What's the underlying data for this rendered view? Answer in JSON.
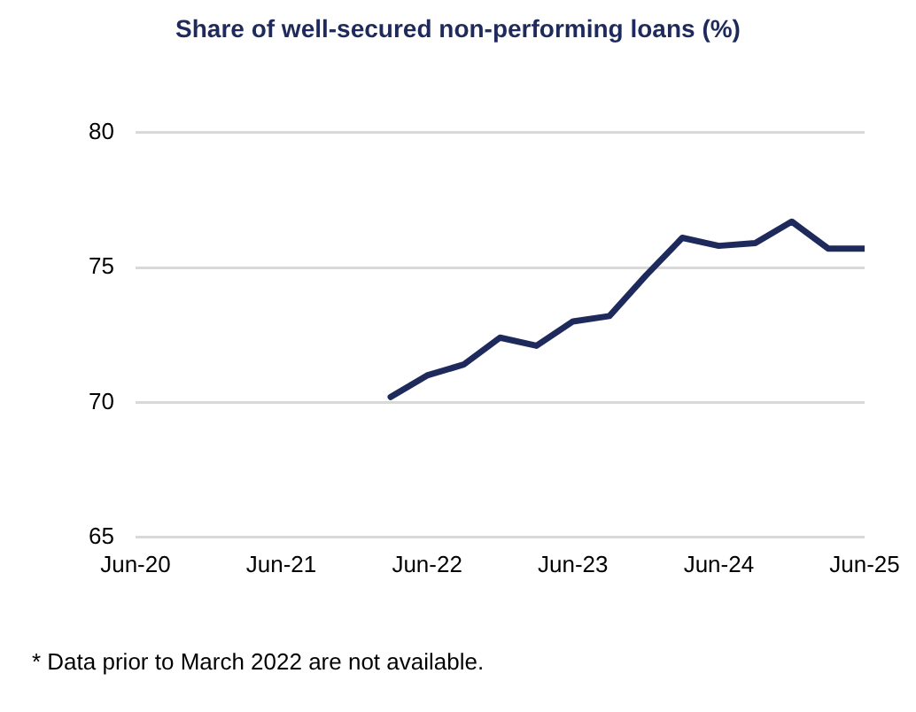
{
  "chart_data": {
    "type": "line",
    "title": "Share of well-secured non-performing loans (%)",
    "x": [
      "2022-03",
      "2022-06",
      "2022-09",
      "2022-12",
      "2023-03",
      "2023-06",
      "2023-09",
      "2023-12",
      "2024-03",
      "2024-06",
      "2024-09",
      "2024-12",
      "2025-03",
      "2025-06"
    ],
    "series": [
      {
        "color": "#1f2a5c",
        "values": [
          70.2,
          71.0,
          71.4,
          72.4,
          72.1,
          73.0,
          73.2,
          74.7,
          76.1,
          75.8,
          75.9,
          76.7,
          75.7,
          75.7
        ]
      }
    ],
    "xlim": [
      "2020-06",
      "2025-06"
    ],
    "xticks": [
      {
        "value": "2020-06",
        "label": "Jun-20"
      },
      {
        "value": "2021-06",
        "label": "Jun-21"
      },
      {
        "value": "2022-06",
        "label": "Jun-22"
      },
      {
        "value": "2023-06",
        "label": "Jun-23"
      },
      {
        "value": "2024-06",
        "label": "Jun-24"
      },
      {
        "value": "2025-06",
        "label": "Jun-25"
      }
    ],
    "ylim": [
      65,
      80
    ],
    "yticks": [
      65,
      70,
      75,
      80
    ],
    "grid": "y",
    "legend": false,
    "marker": "none",
    "line_style": "solid",
    "annotations": [
      "* Data prior to March 2022 are not available."
    ]
  }
}
